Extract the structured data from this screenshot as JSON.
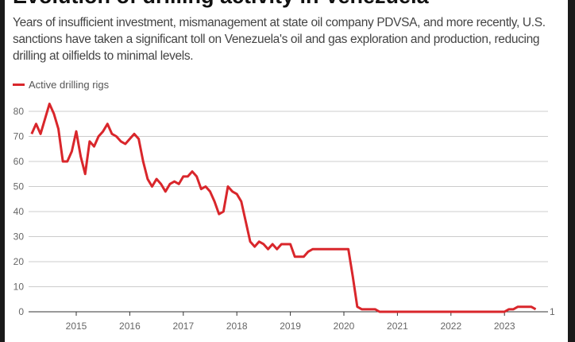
{
  "title": "Evolution of drilling activity in Venezuela",
  "subtitle": "Years of insufficient investment, mismanagement at state oil company PDVSA, and more recently, U.S. sanctions have taken a significant toll on Venezuela's oil and gas exploration and production, reducing drilling at oilfields to minimal levels.",
  "chart_data": {
    "type": "line",
    "title": "Evolution of drilling activity in Venezuela",
    "legend": {
      "position": "top-left",
      "entries": [
        "Active drilling rigs"
      ]
    },
    "ylim": [
      0,
      80
    ],
    "yticks": [
      "0",
      "10",
      "20",
      "30",
      "40",
      "50",
      "60",
      "70",
      "80"
    ],
    "xticks": [
      "2015",
      "2016",
      "2017",
      "2018",
      "2019",
      "2020",
      "2021",
      "2022",
      "2023"
    ],
    "grid": true,
    "end_label": "1",
    "series": [
      {
        "name": "Active drilling rigs",
        "color": "#d9262b",
        "start": "2014-03",
        "frequency": "monthly",
        "values": [
          71,
          75,
          71,
          77,
          83,
          79,
          73,
          60,
          60,
          64,
          72,
          62,
          55,
          68,
          66,
          70,
          72,
          75,
          71,
          70,
          68,
          67,
          69,
          71,
          69,
          60,
          53,
          50,
          53,
          51,
          48,
          51,
          52,
          51,
          54,
          54,
          56,
          54,
          49,
          50,
          48,
          44,
          39,
          40,
          50,
          48,
          47,
          44,
          36,
          28,
          26,
          28,
          27,
          25,
          27,
          25,
          27,
          27,
          27,
          22,
          22,
          22,
          24,
          25,
          25,
          25,
          25,
          25,
          25,
          25,
          25,
          25,
          14,
          2,
          1,
          1,
          1,
          1,
          0,
          0,
          0,
          0,
          0,
          0,
          0,
          0,
          0,
          0,
          0,
          0,
          0,
          0,
          0,
          0,
          0,
          0,
          0,
          0,
          0,
          0,
          0,
          0,
          0,
          0,
          0,
          0,
          0,
          1,
          1,
          2,
          2,
          2,
          2,
          1
        ]
      }
    ]
  }
}
